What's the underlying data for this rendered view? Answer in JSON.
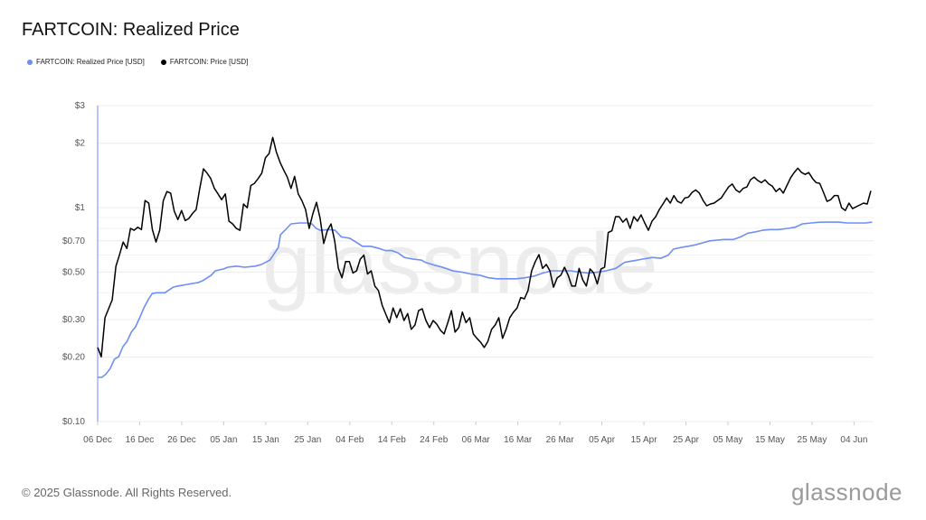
{
  "title": "FARTCOIN: Realized Price",
  "footer": "© 2025 Glassnode. All Rights Reserved.",
  "logo": "glassnode",
  "watermark": "glassnode",
  "chart_data": {
    "type": "line",
    "title": "FARTCOIN: Realized Price",
    "xlabel": "",
    "ylabel": "",
    "y_scale": "log",
    "ylim": [
      0.1,
      3
    ],
    "x_range_days": [
      0,
      184
    ],
    "x_start": "06 Dec 2024",
    "grid": true,
    "legend_position": "top-left",
    "x_ticks": [
      {
        "day": 0,
        "label": "06 Dec"
      },
      {
        "day": 10,
        "label": "16 Dec"
      },
      {
        "day": 20,
        "label": "26 Dec"
      },
      {
        "day": 30,
        "label": "05 Jan"
      },
      {
        "day": 40,
        "label": "15 Jan"
      },
      {
        "day": 50,
        "label": "25 Jan"
      },
      {
        "day": 60,
        "label": "04 Feb"
      },
      {
        "day": 70,
        "label": "14 Feb"
      },
      {
        "day": 80,
        "label": "24 Feb"
      },
      {
        "day": 90,
        "label": "06 Mar"
      },
      {
        "day": 100,
        "label": "16 Mar"
      },
      {
        "day": 110,
        "label": "26 Mar"
      },
      {
        "day": 120,
        "label": "05 Apr"
      },
      {
        "day": 130,
        "label": "15 Apr"
      },
      {
        "day": 140,
        "label": "25 Apr"
      },
      {
        "day": 150,
        "label": "05 May"
      },
      {
        "day": 160,
        "label": "15 May"
      },
      {
        "day": 170,
        "label": "25 May"
      },
      {
        "day": 180,
        "label": "04 Jun"
      }
    ],
    "y_ticks": [
      {
        "value": 3,
        "label": "$3"
      },
      {
        "value": 2,
        "label": "$2"
      },
      {
        "value": 1,
        "label": "$1"
      },
      {
        "value": 0.7,
        "label": "$0.70"
      },
      {
        "value": 0.5,
        "label": "$0.50"
      },
      {
        "value": 0.3,
        "label": "$0.30"
      },
      {
        "value": 0.2,
        "label": "$0.20"
      },
      {
        "value": 0.1,
        "label": "$0.10"
      }
    ],
    "y_minor_grid": [
      0.9,
      0.8,
      0.6,
      0.4
    ],
    "series": [
      {
        "name": "FARTCOIN: Realized Price [USD]",
        "color": "#6e8ef5",
        "points": [
          [
            0,
            0.161
          ],
          [
            1,
            0.161
          ],
          [
            2,
            0.167
          ],
          [
            3,
            0.177
          ],
          [
            4,
            0.196
          ],
          [
            5,
            0.201
          ],
          [
            6,
            0.224
          ],
          [
            7,
            0.237
          ],
          [
            8,
            0.262
          ],
          [
            9,
            0.277
          ],
          [
            10,
            0.306
          ],
          [
            11,
            0.34
          ],
          [
            12,
            0.371
          ],
          [
            13,
            0.397
          ],
          [
            14,
            0.4
          ],
          [
            16,
            0.4
          ],
          [
            18,
            0.425
          ],
          [
            19,
            0.43
          ],
          [
            22,
            0.44
          ],
          [
            24,
            0.447
          ],
          [
            25,
            0.456
          ],
          [
            27,
            0.483
          ],
          [
            28,
            0.507
          ],
          [
            30,
            0.517
          ],
          [
            31,
            0.527
          ],
          [
            33,
            0.533
          ],
          [
            35,
            0.527
          ],
          [
            37.5,
            0.533
          ],
          [
            39,
            0.543
          ],
          [
            41,
            0.569
          ],
          [
            42,
            0.609
          ],
          [
            43,
            0.652
          ],
          [
            43.5,
            0.747
          ],
          [
            45,
            0.8
          ],
          [
            46,
            0.84
          ],
          [
            48,
            0.848
          ],
          [
            50,
            0.848
          ],
          [
            51,
            0.84
          ],
          [
            52,
            0.8
          ],
          [
            53,
            0.784
          ],
          [
            55,
            0.79
          ],
          [
            56.5,
            0.784
          ],
          [
            58,
            0.73
          ],
          [
            60,
            0.72
          ],
          [
            62,
            0.68
          ],
          [
            63,
            0.66
          ],
          [
            65,
            0.66
          ],
          [
            67,
            0.645
          ],
          [
            68.5,
            0.63
          ],
          [
            70,
            0.63
          ],
          [
            71.5,
            0.615
          ],
          [
            73,
            0.585
          ],
          [
            75,
            0.575
          ],
          [
            77,
            0.569
          ],
          [
            78,
            0.555
          ],
          [
            80,
            0.54
          ],
          [
            82,
            0.527
          ],
          [
            84.5,
            0.507
          ],
          [
            86.6,
            0.5
          ],
          [
            88.8,
            0.49
          ],
          [
            91,
            0.483
          ],
          [
            93,
            0.47
          ],
          [
            95,
            0.465
          ],
          [
            97.4,
            0.465
          ],
          [
            99.6,
            0.465
          ],
          [
            101.7,
            0.47
          ],
          [
            104,
            0.48
          ],
          [
            106,
            0.495
          ],
          [
            108,
            0.507
          ],
          [
            110,
            0.507
          ],
          [
            112.5,
            0.507
          ],
          [
            114.7,
            0.5
          ],
          [
            116.8,
            0.495
          ],
          [
            119,
            0.5
          ],
          [
            121,
            0.507
          ],
          [
            123.3,
            0.52
          ],
          [
            125.4,
            0.555
          ],
          [
            127.6,
            0.565
          ],
          [
            129.7,
            0.575
          ],
          [
            132,
            0.585
          ],
          [
            134,
            0.58
          ],
          [
            135.8,
            0.6
          ],
          [
            137,
            0.64
          ],
          [
            138.8,
            0.652
          ],
          [
            140.5,
            0.66
          ],
          [
            142.2,
            0.67
          ],
          [
            144,
            0.685
          ],
          [
            145.7,
            0.7
          ],
          [
            147.4,
            0.705
          ],
          [
            149,
            0.71
          ],
          [
            151.3,
            0.71
          ],
          [
            153,
            0.73
          ],
          [
            154.7,
            0.76
          ],
          [
            156.5,
            0.77
          ],
          [
            158.2,
            0.784
          ],
          [
            160,
            0.79
          ],
          [
            162,
            0.79
          ],
          [
            164.2,
            0.8
          ],
          [
            166,
            0.81
          ],
          [
            167.7,
            0.84
          ],
          [
            169.8,
            0.848
          ],
          [
            172,
            0.856
          ],
          [
            174,
            0.856
          ],
          [
            176.3,
            0.856
          ],
          [
            178.4,
            0.848
          ],
          [
            180.6,
            0.848
          ],
          [
            182.8,
            0.848
          ],
          [
            184.3,
            0.856
          ]
        ]
      },
      {
        "name": "FARTCOIN: Price [USD]",
        "color": "#000000",
        "values": [
          0.222,
          0.201,
          0.306,
          0.337,
          0.371,
          0.533,
          0.603,
          0.691,
          0.645,
          0.8,
          0.784,
          0.81,
          0.79,
          1.08,
          1.05,
          0.79,
          0.691,
          0.784,
          1.08,
          1.19,
          1.17,
          0.962,
          0.88,
          0.97,
          0.87,
          0.89,
          0.94,
          0.98,
          1.23,
          1.52,
          1.45,
          1.37,
          1.23,
          1.16,
          1.09,
          1.16,
          0.865,
          0.84,
          0.8,
          0.784,
          1.04,
          1.0,
          1.27,
          1.3,
          1.37,
          1.45,
          1.71,
          1.79,
          2.13,
          1.82,
          1.63,
          1.5,
          1.39,
          1.23,
          1.4,
          1.16,
          1.08,
          0.98,
          0.8,
          0.935,
          1.06,
          0.89,
          0.68,
          0.784,
          0.84,
          0.7,
          0.52,
          0.47,
          0.56,
          0.56,
          0.495,
          0.507,
          0.575,
          0.6,
          0.49,
          0.507,
          0.43,
          0.41,
          0.35,
          0.318,
          0.29,
          0.34,
          0.306,
          0.337,
          0.297,
          0.32,
          0.27,
          0.283,
          0.33,
          0.337,
          0.297,
          0.275,
          0.297,
          0.285,
          0.267,
          0.257,
          0.29,
          0.33,
          0.262,
          0.275,
          0.325,
          0.29,
          0.306,
          0.257,
          0.245,
          0.235,
          0.222,
          0.237,
          0.27,
          0.283,
          0.306,
          0.245,
          0.27,
          0.306,
          0.325,
          0.34,
          0.38,
          0.375,
          0.41,
          0.507,
          0.56,
          0.603,
          0.52,
          0.543,
          0.507,
          0.425,
          0.47,
          0.483,
          0.527,
          0.483,
          0.43,
          0.43,
          0.52,
          0.46,
          0.43,
          0.517,
          0.495,
          0.44,
          0.517,
          0.527,
          0.765,
          0.78,
          0.908,
          0.908,
          0.856,
          0.89,
          0.8,
          0.908,
          0.865,
          0.926,
          0.848,
          0.784,
          0.865,
          0.908,
          0.98,
          1.04,
          1.11,
          1.05,
          1.14,
          1.07,
          1.05,
          1.11,
          1.12,
          1.18,
          1.21,
          1.17,
          1.08,
          1.02,
          1.04,
          1.05,
          1.08,
          1.11,
          1.18,
          1.25,
          1.29,
          1.21,
          1.18,
          1.23,
          1.25,
          1.35,
          1.39,
          1.34,
          1.31,
          1.35,
          1.29,
          1.26,
          1.19,
          1.23,
          1.17,
          1.27,
          1.38,
          1.46,
          1.53,
          1.46,
          1.43,
          1.46,
          1.37,
          1.31,
          1.3,
          1.18,
          1.07,
          1.09,
          1.14,
          1.14,
          1.0,
          0.97,
          1.05,
          0.99,
          1.01,
          1.03,
          1.05,
          1.04,
          1.2
        ]
      }
    ]
  }
}
